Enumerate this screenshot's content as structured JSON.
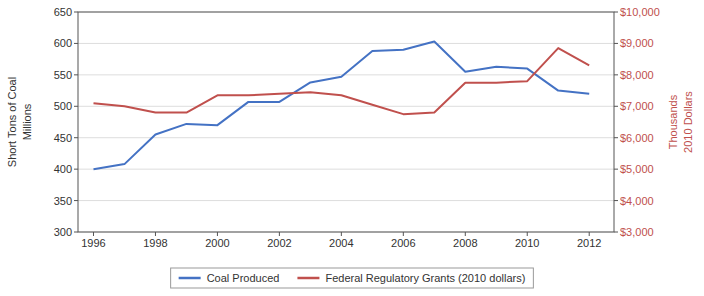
{
  "chart_data": {
    "type": "line",
    "x": [
      1996,
      1997,
      1998,
      1999,
      2000,
      2001,
      2002,
      2003,
      2004,
      2005,
      2006,
      2007,
      2008,
      2009,
      2010,
      2011,
      2012
    ],
    "xlim": [
      1995.5,
      2012.8
    ],
    "xticks": [
      1996,
      1998,
      2000,
      2002,
      2004,
      2006,
      2008,
      2010,
      2012
    ],
    "series": [
      {
        "name": "Coal Produced",
        "color": "#4472C4",
        "axis": "y",
        "values": [
          400,
          408,
          455,
          472,
          470,
          507,
          507,
          538,
          547,
          588,
          590,
          603,
          555,
          563,
          560,
          525,
          520
        ]
      },
      {
        "name": "Federal Regulatory Grants (2010 dollars)",
        "color": "#C0504D",
        "axis": "y2",
        "values": [
          7100,
          7000,
          6800,
          6800,
          7350,
          7350,
          7400,
          7450,
          7350,
          7050,
          6750,
          6800,
          7750,
          7750,
          7800,
          8850,
          8300
        ]
      }
    ],
    "ylim": [
      300,
      650
    ],
    "yticks": [
      300,
      350,
      400,
      450,
      500,
      550,
      600,
      650
    ],
    "y2lim": [
      3000,
      10000
    ],
    "y2ticks": [
      {
        "value": 3000,
        "label": "$3,000"
      },
      {
        "value": 4000,
        "label": "$4,000"
      },
      {
        "value": 5000,
        "label": "$5,000"
      },
      {
        "value": 6000,
        "label": "$6,000"
      },
      {
        "value": 7000,
        "label": "$7,000"
      },
      {
        "value": 8000,
        "label": "$8,000"
      },
      {
        "value": 9000,
        "label": "$9,000"
      },
      {
        "value": 10000,
        "label": "$10,000"
      }
    ],
    "ylabel": [
      "Short Tons of Coal",
      "Millions"
    ],
    "y2label": [
      "2010 Dollars",
      "Thousands"
    ],
    "grid": true,
    "legend": "bottom"
  }
}
